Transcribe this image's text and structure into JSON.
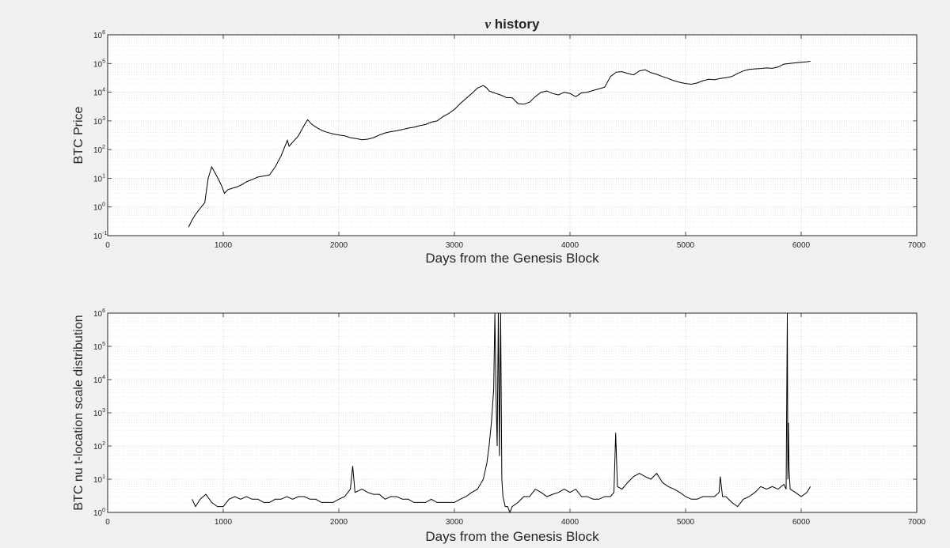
{
  "figure": {
    "title_symbol": "ν",
    "title_text": " history"
  },
  "chart_data": [
    {
      "type": "line",
      "title": "ν history",
      "xlabel": "Days from the Genesis Block",
      "ylabel": "BTC Price",
      "xlim": [
        0,
        7000
      ],
      "xticks": [
        0,
        1000,
        2000,
        3000,
        4000,
        5000,
        6000,
        7000
      ],
      "yscale": "log",
      "ylim_exponents": [
        -1,
        6
      ],
      "ytick_exponents": [
        -1,
        0,
        1,
        2,
        3,
        4,
        5,
        6
      ],
      "grid": true,
      "line_color": "#000000",
      "series": [
        {
          "x": [
            700,
            730,
            760,
            800,
            840,
            870,
            900,
            930,
            960,
            990,
            1010,
            1040,
            1080,
            1120,
            1160,
            1200,
            1250,
            1300,
            1350,
            1400,
            1450,
            1500,
            1530,
            1555,
            1570,
            1600,
            1650,
            1700,
            1730,
            1760,
            1790,
            1820,
            1860,
            1900,
            1950,
            2000,
            2050,
            2100,
            2150,
            2200,
            2250,
            2300,
            2350,
            2400,
            2450,
            2500,
            2550,
            2600,
            2650,
            2700,
            2750,
            2800,
            2850,
            2900,
            2950,
            3000,
            3050,
            3100,
            3150,
            3200,
            3250,
            3280,
            3300,
            3330,
            3360,
            3400,
            3450,
            3500,
            3550,
            3600,
            3650,
            3700,
            3750,
            3800,
            3850,
            3900,
            3950,
            4000,
            4050,
            4100,
            4150,
            4200,
            4250,
            4300,
            4350,
            4400,
            4450,
            4500,
            4550,
            4600,
            4650,
            4700,
            4750,
            4800,
            4850,
            4900,
            4950,
            5000,
            5050,
            5100,
            5150,
            5200,
            5250,
            5300,
            5350,
            5400,
            5450,
            5500,
            5550,
            5600,
            5650,
            5700,
            5750,
            5800,
            5850,
            5900,
            5950,
            6000,
            6050,
            6080
          ],
          "y": [
            0.2,
            0.35,
            0.55,
            0.9,
            1.4,
            10,
            25,
            15,
            9,
            5,
            3,
            4,
            4.5,
            5,
            6,
            7.5,
            9,
            11,
            12,
            13,
            25,
            60,
            120,
            210,
            130,
            180,
            300,
            700,
            1100,
            800,
            650,
            550,
            450,
            400,
            350,
            320,
            300,
            260,
            240,
            220,
            230,
            260,
            320,
            380,
            420,
            450,
            500,
            560,
            600,
            680,
            750,
            900,
            1000,
            1400,
            1800,
            2500,
            4000,
            6000,
            9000,
            14000,
            17000,
            14000,
            11000,
            10000,
            9000,
            8000,
            6500,
            6400,
            4000,
            3800,
            4500,
            7000,
            10000,
            11000,
            9000,
            8000,
            10000,
            9000,
            7000,
            9500,
            10000,
            11500,
            13000,
            15000,
            35000,
            50000,
            52000,
            45000,
            40000,
            55000,
            60000,
            48000,
            42000,
            35000,
            30000,
            25000,
            22000,
            20000,
            19000,
            21000,
            25000,
            28000,
            27000,
            30000,
            32000,
            35000,
            45000,
            55000,
            62000,
            65000,
            67000,
            70000,
            68000,
            75000,
            95000,
            100000,
            105000,
            110000,
            115000,
            120000
          ]
        }
      ]
    },
    {
      "type": "line",
      "xlabel": "Days from the Genesis Block",
      "ylabel": "BTC nu t-location scale distribution",
      "xlim": [
        0,
        7000
      ],
      "xticks": [
        0,
        1000,
        2000,
        3000,
        4000,
        5000,
        6000,
        7000
      ],
      "yscale": "log",
      "ylim_exponents": [
        0,
        6
      ],
      "ytick_exponents": [
        0,
        1,
        2,
        3,
        4,
        5,
        6
      ],
      "grid": true,
      "line_color": "#000000",
      "series": [
        {
          "x": [
            730,
            760,
            800,
            850,
            900,
            950,
            1000,
            1050,
            1100,
            1150,
            1200,
            1250,
            1300,
            1350,
            1400,
            1450,
            1500,
            1550,
            1600,
            1650,
            1700,
            1750,
            1800,
            1850,
            1900,
            1950,
            2000,
            2050,
            2100,
            2120,
            2140,
            2200,
            2250,
            2300,
            2350,
            2400,
            2450,
            2500,
            2550,
            2600,
            2650,
            2700,
            2750,
            2800,
            2850,
            2900,
            2950,
            3000,
            3050,
            3100,
            3150,
            3200,
            3250,
            3280,
            3300,
            3320,
            3340,
            3350,
            3360,
            3370,
            3380,
            3390,
            3400,
            3410,
            3420,
            3440,
            3460,
            3480,
            3500,
            3550,
            3600,
            3650,
            3700,
            3750,
            3800,
            3850,
            3900,
            3950,
            4000,
            4050,
            4100,
            4150,
            4200,
            4250,
            4300,
            4350,
            4380,
            4395,
            4410,
            4450,
            4500,
            4550,
            4600,
            4650,
            4700,
            4750,
            4800,
            4850,
            4900,
            4950,
            5000,
            5050,
            5100,
            5150,
            5200,
            5250,
            5290,
            5300,
            5320,
            5350,
            5400,
            5450,
            5500,
            5550,
            5600,
            5650,
            5700,
            5750,
            5800,
            5850,
            5870,
            5880,
            5885,
            5890,
            5895,
            5905,
            5950,
            6000,
            6050,
            6080
          ],
          "y": [
            2.5,
            1.5,
            2.5,
            3.5,
            2,
            1.5,
            1.5,
            2.5,
            3,
            2.5,
            3,
            2.5,
            2.5,
            2,
            2,
            2.5,
            2.5,
            3,
            2.5,
            3,
            3,
            2.5,
            2.5,
            2,
            2,
            2,
            2.5,
            3,
            5,
            25,
            4,
            5,
            4,
            3.5,
            3.5,
            2.5,
            3,
            3,
            2.5,
            2.5,
            2,
            2,
            2,
            2.5,
            2,
            2,
            2,
            2,
            2.5,
            3,
            4,
            5,
            10,
            30,
            100,
            500,
            5000,
            1000000,
            3000,
            100,
            1000000,
            50,
            1000000,
            10,
            3,
            1.5,
            1.5,
            1,
            1.5,
            2,
            3,
            3,
            5,
            4,
            3,
            3.5,
            4,
            5,
            4,
            5,
            3,
            3,
            2.5,
            2.5,
            3,
            3,
            4,
            250,
            6,
            5,
            8,
            12,
            15,
            12,
            10,
            15,
            8,
            6,
            5,
            4,
            3,
            2.5,
            2.5,
            3,
            3,
            3,
            4,
            12,
            3,
            3,
            2,
            1.5,
            2.5,
            3,
            4,
            6,
            5,
            6,
            5,
            7,
            5,
            1000000,
            10,
            500,
            20,
            5,
            4,
            3,
            4,
            6
          ]
        }
      ]
    }
  ]
}
